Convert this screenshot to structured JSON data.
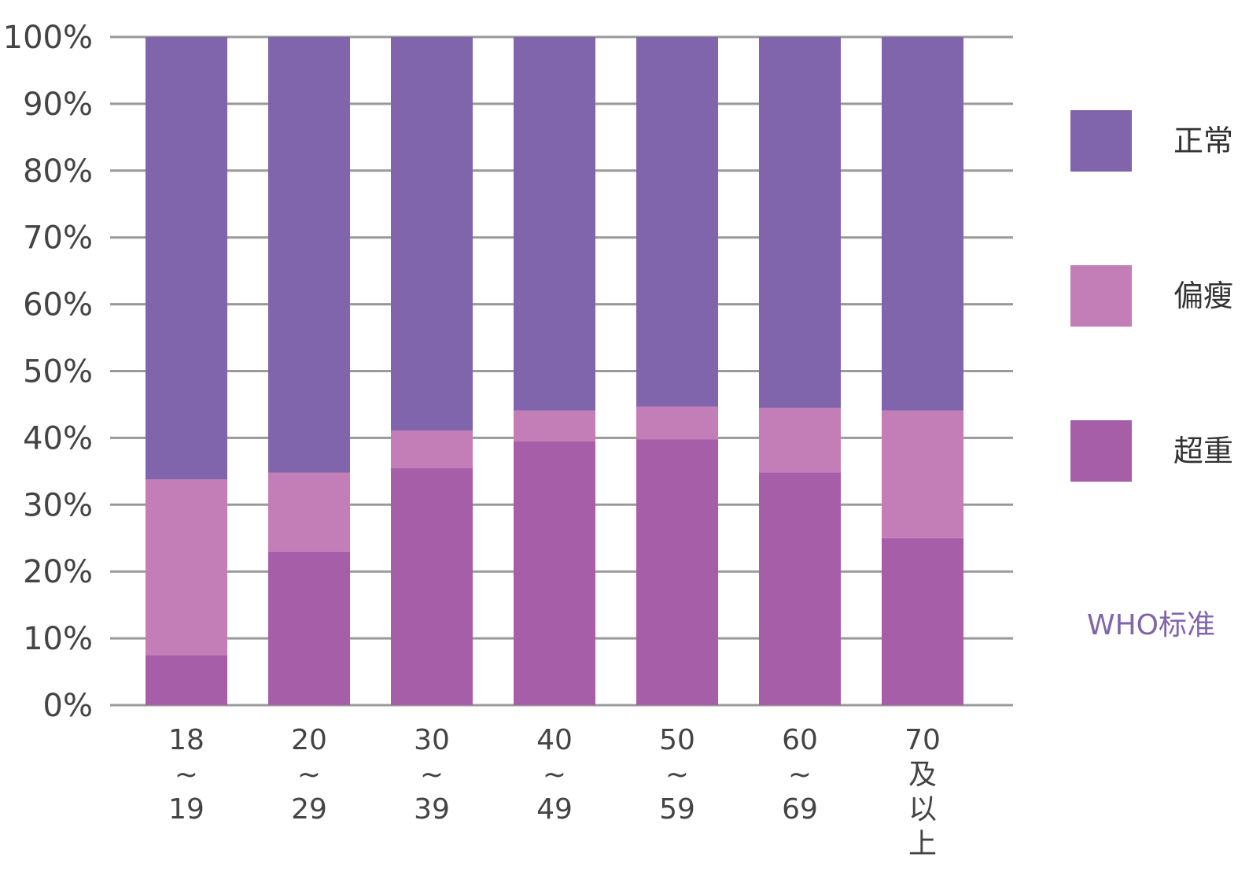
{
  "chart_data": {
    "type": "bar",
    "stacked": true,
    "categories": [
      [
        "18",
        "~",
        "19"
      ],
      [
        "20",
        "~",
        "29"
      ],
      [
        "30",
        "~",
        "39"
      ],
      [
        "40",
        "~",
        "49"
      ],
      [
        "50",
        "~",
        "59"
      ],
      [
        "60",
        "~",
        "69"
      ],
      [
        "70",
        "及",
        "以",
        "上"
      ]
    ],
    "series": [
      {
        "name": "超重",
        "color": "#a65ea8",
        "values": [
          7.5,
          23,
          35.5,
          39.5,
          39.8,
          34.8,
          25
        ]
      },
      {
        "name": "偏瘦",
        "color": "#c37db7",
        "values": [
          26.3,
          11.8,
          5.6,
          4.6,
          4.9,
          9.7,
          19.1
        ]
      },
      {
        "name": "正常",
        "color": "#8064ac",
        "values": [
          66.2,
          65.2,
          58.9,
          55.9,
          55.3,
          55.5,
          55.9
        ]
      }
    ],
    "legend_order": [
      "正常",
      "偏瘦",
      "超重"
    ],
    "legend_position": "right",
    "yticks": [
      "0%",
      "10%",
      "20%",
      "30%",
      "40%",
      "50%",
      "60%",
      "70%",
      "80%",
      "90%",
      "100%"
    ],
    "ylim": [
      0,
      100
    ],
    "grid": true,
    "gridline_color": "#999999",
    "annotation": {
      "text": "WHO标准",
      "color": "#8064ac"
    }
  }
}
